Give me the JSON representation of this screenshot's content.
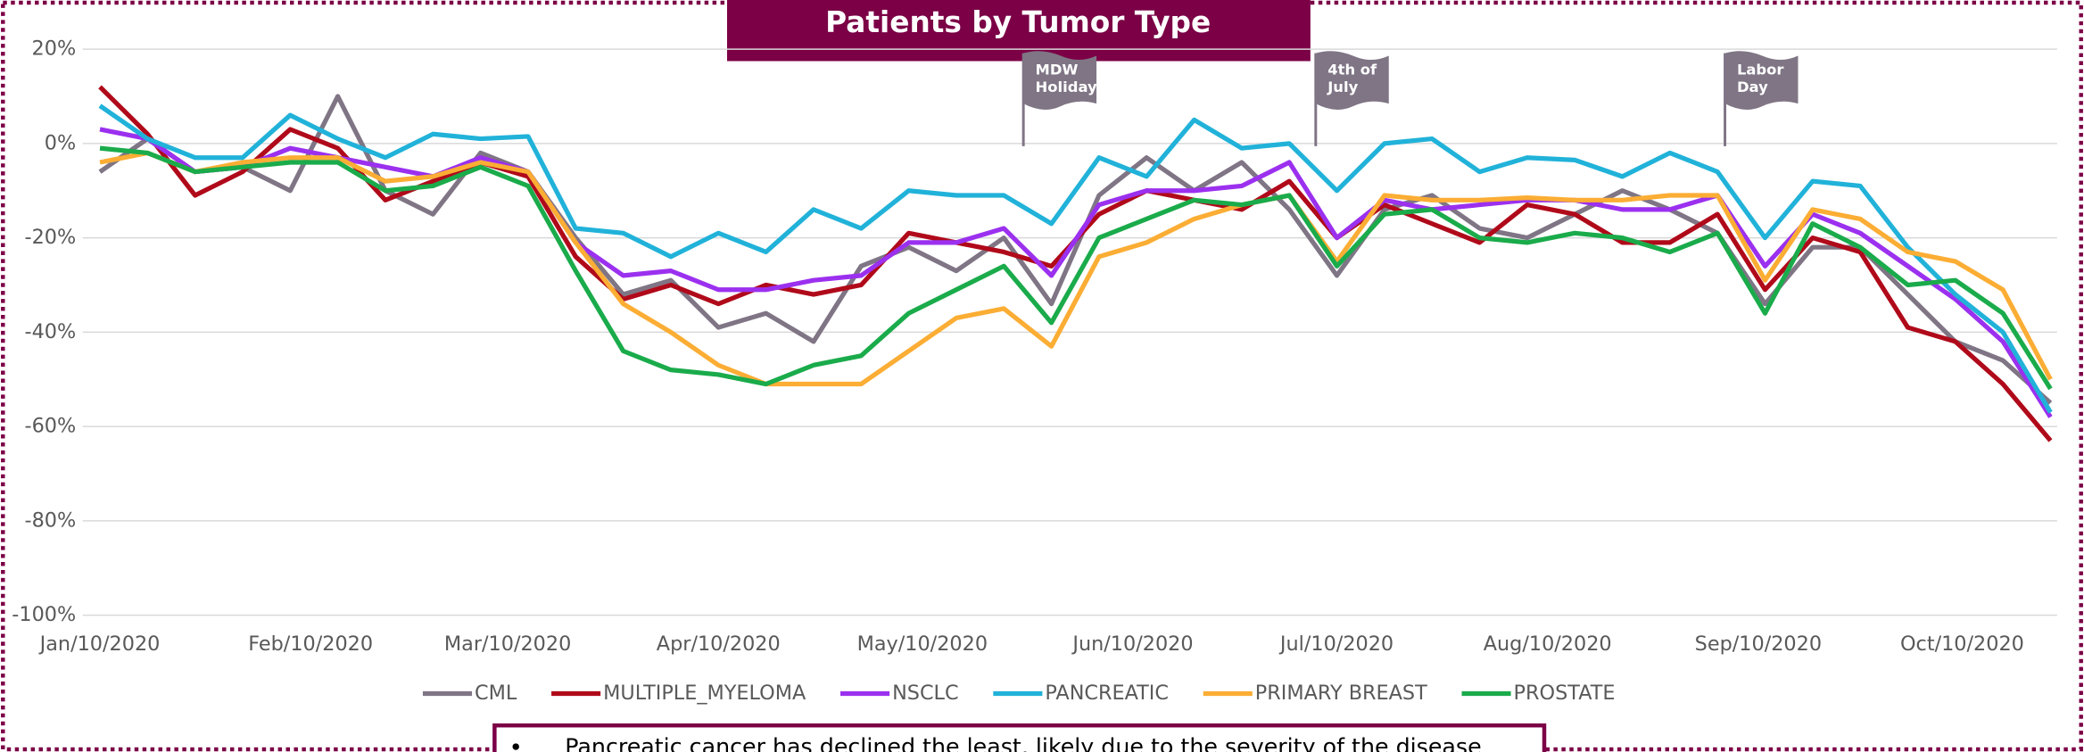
{
  "chart_data": {
    "type": "line",
    "title": "Patients by Tumor Type",
    "x": [
      "2020-01-10",
      "2020-01-17",
      "2020-01-24",
      "2020-01-31",
      "2020-02-07",
      "2020-02-14",
      "2020-02-21",
      "2020-02-28",
      "2020-03-06",
      "2020-03-13",
      "2020-03-20",
      "2020-03-27",
      "2020-04-03",
      "2020-04-10",
      "2020-04-17",
      "2020-04-24",
      "2020-05-01",
      "2020-05-08",
      "2020-05-15",
      "2020-05-22",
      "2020-05-29",
      "2020-06-05",
      "2020-06-12",
      "2020-06-19",
      "2020-06-26",
      "2020-07-03",
      "2020-07-10",
      "2020-07-17",
      "2020-07-24",
      "2020-07-31",
      "2020-08-07",
      "2020-08-14",
      "2020-08-21",
      "2020-08-28",
      "2020-09-04",
      "2020-09-11",
      "2020-09-18",
      "2020-09-25",
      "2020-10-02",
      "2020-10-09",
      "2020-10-16",
      "2020-10-23"
    ],
    "series": [
      {
        "name": "CML",
        "color": "#7f7585",
        "values": [
          -6,
          1,
          -6,
          -5,
          -10,
          10,
          -10,
          -15,
          -2,
          -6,
          -20,
          -32,
          -29,
          -39,
          -36,
          -42,
          -26,
          -22,
          -27,
          -20,
          -34,
          -11,
          -3,
          -10,
          -4,
          -14,
          -28,
          -14,
          -11,
          -18,
          -20,
          -15,
          -10,
          -14,
          -19,
          -34,
          -22,
          -22,
          -32,
          -42,
          -46,
          -55
        ]
      },
      {
        "name": "MULTIPLE_MYELOMA",
        "color": "#b00a1a",
        "values": [
          12,
          2,
          -11,
          -6,
          3,
          -1,
          -12,
          -8,
          -4,
          -7,
          -24,
          -33,
          -30,
          -34,
          -30,
          -32,
          -30,
          -19,
          -21,
          -23,
          -26,
          -15,
          -10,
          -12,
          -14,
          -8,
          -20,
          -13,
          -17,
          -21,
          -13,
          -15,
          -21,
          -21,
          -15,
          -31,
          -20,
          -23,
          -39,
          -42,
          -51,
          -63
        ]
      },
      {
        "name": "NSCLC",
        "color": "#9b30ef",
        "values": [
          3,
          1,
          -6,
          -5,
          -1,
          -3,
          -5,
          -7,
          -3,
          -6,
          -21,
          -28,
          -27,
          -31,
          -31,
          -29,
          -28,
          -21,
          -21,
          -18,
          -28,
          -13,
          -10,
          -10,
          -9,
          -4,
          -20,
          -12,
          -14,
          -13,
          -12,
          -12,
          -14,
          -14,
          -11,
          -26,
          -15,
          -19,
          -26,
          -33,
          -42,
          -58
        ]
      },
      {
        "name": "PANCREATIC",
        "color": "#21b2d9",
        "values": [
          8,
          1,
          -3,
          -3,
          6,
          1,
          -3,
          2,
          1,
          1.5,
          -18,
          -19,
          -24,
          -19,
          -23,
          -14,
          -18,
          -10,
          -11,
          -11,
          -17,
          -3,
          -7,
          5,
          -1,
          0,
          -10,
          0,
          1,
          -6,
          -3,
          -3.5,
          -7,
          -2,
          -6,
          -20,
          -8,
          -9,
          -22,
          -32,
          -40,
          -57
        ]
      },
      {
        "name": "PRIMARY BREAST",
        "color": "#fbad34",
        "values": [
          -4,
          -2,
          -6,
          -4,
          -3,
          -3,
          -8,
          -7,
          -4,
          -6,
          -21,
          -34,
          -40,
          -47,
          -51,
          -51,
          -51,
          -44,
          -37,
          -35,
          -43,
          -24,
          -21,
          -16,
          -13,
          -11,
          -25,
          -11,
          -12,
          -12,
          -11.5,
          -12,
          -12,
          -11,
          -11,
          -29,
          -14,
          -16,
          -23,
          -25,
          -31,
          -50
        ]
      },
      {
        "name": "PROSTATE",
        "color": "#1aab4b",
        "values": [
          -1,
          -2,
          -6,
          -5,
          -4,
          -4,
          -10,
          -9,
          -5,
          -9,
          -27,
          -44,
          -48,
          -49,
          -51,
          -47,
          -45,
          -36,
          -31,
          -26,
          -38,
          -20,
          -16,
          -12,
          -13,
          -11,
          -26,
          -15,
          -14,
          -20,
          -21,
          -19,
          -20,
          -23,
          -19,
          -36,
          -17,
          -22,
          -30,
          -29,
          -36,
          -52
        ]
      }
    ],
    "xlim": [
      "2020-01-10",
      "2020-10-23"
    ],
    "xticks": [
      {
        "value": "2020-01-10",
        "label": "Jan/10/2020"
      },
      {
        "value": "2020-02-10",
        "label": "Feb/10/2020"
      },
      {
        "value": "2020-03-10",
        "label": "Mar/10/2020"
      },
      {
        "value": "2020-04-10",
        "label": "Apr/10/2020"
      },
      {
        "value": "2020-05-10",
        "label": "May/10/2020"
      },
      {
        "value": "2020-06-10",
        "label": "Jun/10/2020"
      },
      {
        "value": "2020-07-10",
        "label": "Jul/10/2020"
      },
      {
        "value": "2020-08-10",
        "label": "Aug/10/2020"
      },
      {
        "value": "2020-09-10",
        "label": "Sep/10/2020"
      },
      {
        "value": "2020-10-10",
        "label": "Oct/10/2020"
      }
    ],
    "ylim": [
      -100,
      20
    ],
    "yticks": [
      {
        "value": -100,
        "label": "-100%"
      },
      {
        "value": -80,
        "label": "-80%"
      },
      {
        "value": -60,
        "label": "-60%"
      },
      {
        "value": -40,
        "label": "-40%"
      },
      {
        "value": -20,
        "label": "-20%"
      },
      {
        "value": 0,
        "label": "0%"
      },
      {
        "value": 20,
        "label": "20%"
      }
    ],
    "grid": true,
    "legend": "bottom",
    "annotations": [
      [
        "MDW",
        "Holiday"
      ],
      [
        "4th of",
        "July"
      ],
      [
        "Labor",
        "Day"
      ]
    ],
    "note": "Pancreatic cancer has declined the least, likely due to the severity of the disease"
  }
}
